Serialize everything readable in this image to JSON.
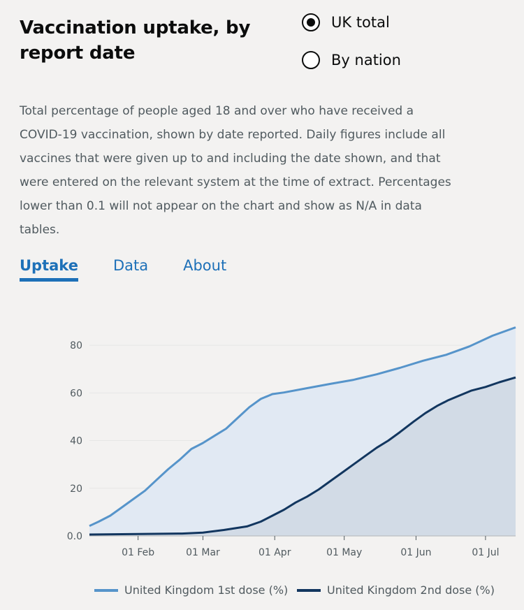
{
  "header": {
    "title": "Vaccination uptake, by report date"
  },
  "radios": [
    {
      "label": "UK total",
      "checked": true
    },
    {
      "label": "By nation",
      "checked": false
    }
  ],
  "description": "Total percentage of people aged 18 and over who have received a COVID-19 vaccination, shown by date reported. Daily figures include all vaccines that were given up to and including the date shown, and that were entered on the relevant system at the time of extract. Percentages lower than 0.1 will not appear on the chart and show as N/A in data tables.",
  "tabs": [
    {
      "label": "Uptake",
      "active": true
    },
    {
      "label": "Data",
      "active": false
    },
    {
      "label": "About",
      "active": false
    }
  ],
  "chart_data": {
    "type": "area",
    "xlabel": "",
    "ylabel": "",
    "ylim": [
      0,
      90
    ],
    "xlim": [
      "2021-01-11",
      "2021-07-14"
    ],
    "yticks": [
      0,
      20,
      40,
      60,
      80
    ],
    "ytick_labels": [
      "0.0",
      "20",
      "40",
      "60",
      "80"
    ],
    "xticks": [
      "2021-02-01",
      "2021-03-01",
      "2021-04-01",
      "2021-05-01",
      "2021-06-01",
      "2021-07-01"
    ],
    "xtick_labels": [
      "01 Feb",
      "01 Mar",
      "01 Apr",
      "01 May",
      "01 Jun",
      "01 Jul"
    ],
    "grid": "horizontal",
    "legend": "bottom",
    "series": [
      {
        "name": "United Kingdom 1st dose (%)",
        "color": "#5694ca",
        "fill": "#e1e9f3",
        "points": [
          [
            "2021-01-11",
            4.2
          ],
          [
            "2021-01-15",
            6.0
          ],
          [
            "2021-01-20",
            8.5
          ],
          [
            "2021-01-25",
            12.0
          ],
          [
            "2021-01-30",
            15.5
          ],
          [
            "2021-02-04",
            19.0
          ],
          [
            "2021-02-09",
            23.5
          ],
          [
            "2021-02-14",
            28.0
          ],
          [
            "2021-02-19",
            32.0
          ],
          [
            "2021-02-24",
            36.5
          ],
          [
            "2021-03-01",
            39.0
          ],
          [
            "2021-03-06",
            42.0
          ],
          [
            "2021-03-11",
            45.0
          ],
          [
            "2021-03-16",
            49.5
          ],
          [
            "2021-03-21",
            54.0
          ],
          [
            "2021-03-26",
            57.5
          ],
          [
            "2021-03-31",
            59.5
          ],
          [
            "2021-04-05",
            60.2
          ],
          [
            "2021-04-15",
            62.0
          ],
          [
            "2021-04-25",
            63.8
          ],
          [
            "2021-05-05",
            65.5
          ],
          [
            "2021-05-15",
            67.8
          ],
          [
            "2021-05-25",
            70.5
          ],
          [
            "2021-06-04",
            73.5
          ],
          [
            "2021-06-14",
            76.0
          ],
          [
            "2021-06-24",
            79.5
          ],
          [
            "2021-07-04",
            84.0
          ],
          [
            "2021-07-14",
            87.5
          ]
        ]
      },
      {
        "name": "United Kingdom 2nd dose (%)",
        "color": "#12365f",
        "fill": "#cfd8e3",
        "points": [
          [
            "2021-01-11",
            0.6
          ],
          [
            "2021-02-01",
            0.8
          ],
          [
            "2021-02-20",
            1.0
          ],
          [
            "2021-03-01",
            1.4
          ],
          [
            "2021-03-10",
            2.5
          ],
          [
            "2021-03-20",
            4.0
          ],
          [
            "2021-03-26",
            6.0
          ],
          [
            "2021-03-31",
            8.5
          ],
          [
            "2021-04-05",
            11.0
          ],
          [
            "2021-04-10",
            14.0
          ],
          [
            "2021-04-15",
            16.5
          ],
          [
            "2021-04-20",
            19.5
          ],
          [
            "2021-04-25",
            23.0
          ],
          [
            "2021-04-30",
            26.5
          ],
          [
            "2021-05-05",
            30.0
          ],
          [
            "2021-05-10",
            33.5
          ],
          [
            "2021-05-15",
            37.0
          ],
          [
            "2021-05-20",
            40.0
          ],
          [
            "2021-05-25",
            43.5
          ],
          [
            "2021-05-31",
            48.0
          ],
          [
            "2021-06-05",
            51.5
          ],
          [
            "2021-06-10",
            54.5
          ],
          [
            "2021-06-15",
            57.0
          ],
          [
            "2021-06-20",
            59.0
          ],
          [
            "2021-06-25",
            61.0
          ],
          [
            "2021-07-01",
            62.5
          ],
          [
            "2021-07-07",
            64.5
          ],
          [
            "2021-07-14",
            66.5
          ]
        ]
      }
    ]
  }
}
